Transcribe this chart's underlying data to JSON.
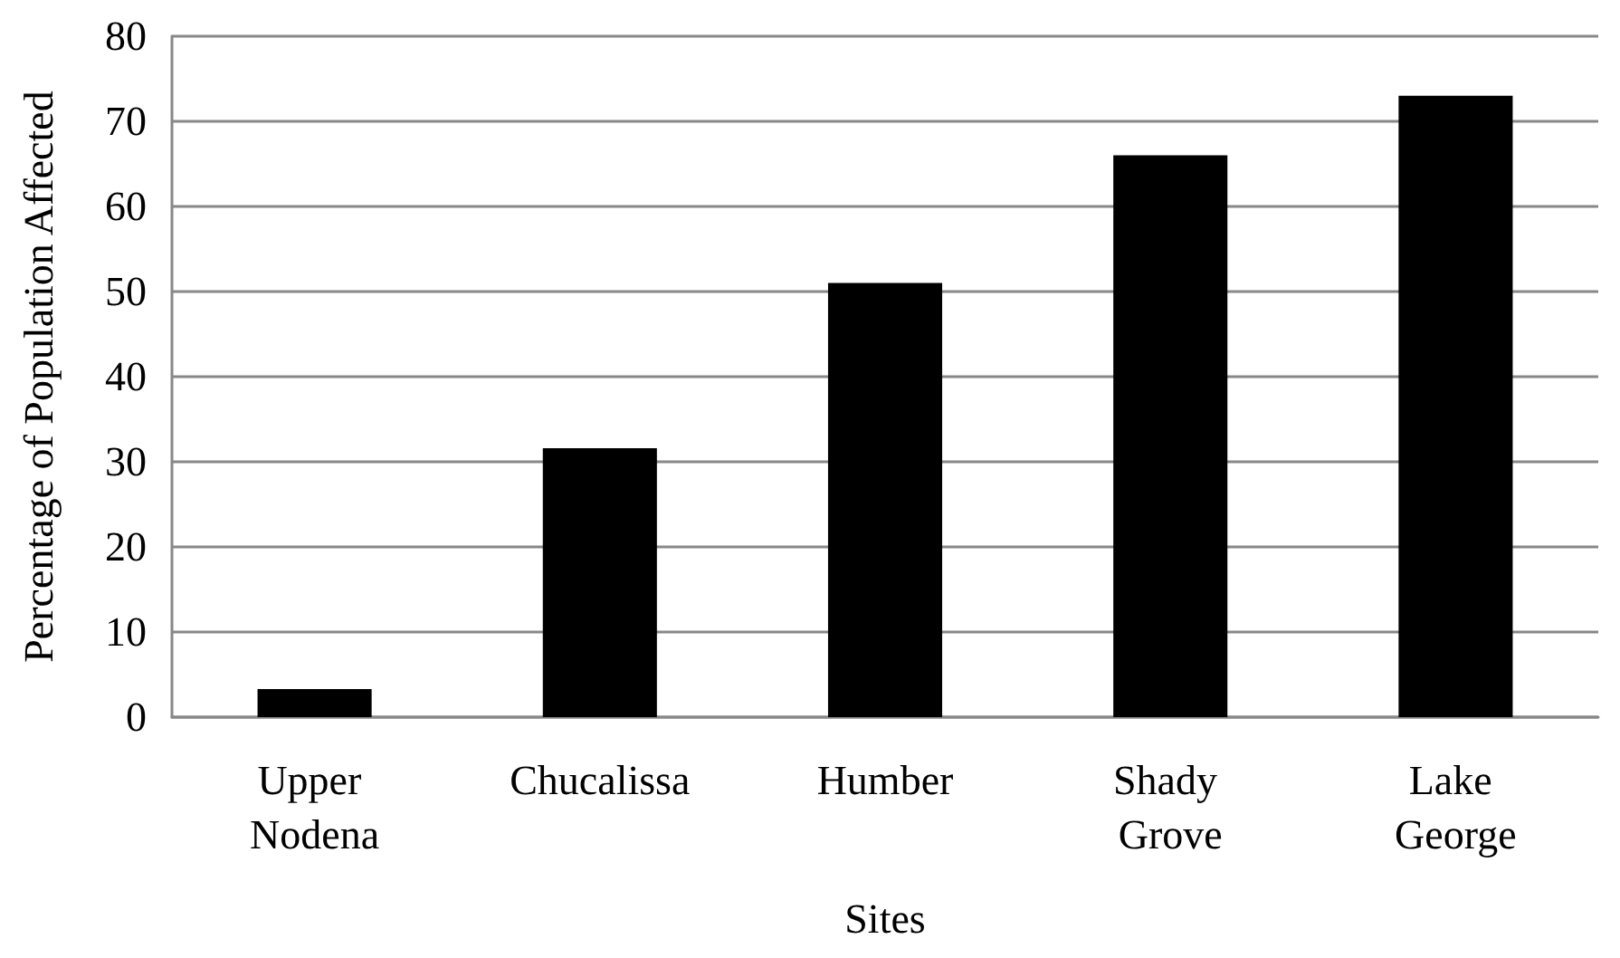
{
  "chart_data": {
    "type": "bar",
    "xlabel": "Sites",
    "ylabel": "Percentage of Population Affected",
    "categories": [
      "Upper Nodena",
      "Chucalissa",
      "Humber",
      "Shady Grove",
      "Lake George"
    ],
    "values": [
      3.3,
      31.6,
      51,
      66,
      73
    ],
    "color": "#000000",
    "ylim": [
      0,
      80
    ],
    "yticks": [
      0,
      10,
      20,
      30,
      40,
      50,
      60,
      70,
      80
    ],
    "grid": "y"
  }
}
